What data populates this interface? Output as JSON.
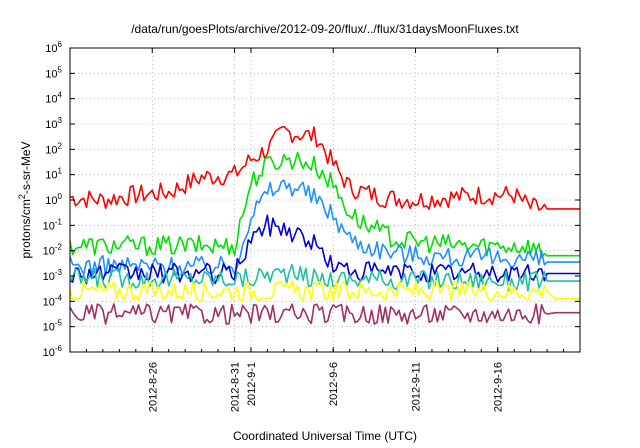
{
  "chart_data": {
    "type": "line",
    "title": "/data/run/goesPlots/archive/2012-09-20/flux/../flux/31daysMoonFluxes.txt",
    "xlabel": "Coordinated Universal Time (UTC)",
    "ylabel": {
      "prefix": "protons/cm",
      "sup": "2",
      "suffix": "-s-sr-MeV"
    },
    "x_range_days_from_2012_08_21": [
      0,
      31
    ],
    "y_scale": "log",
    "ylim": [
      1e-06,
      1000000.0
    ],
    "grid": true,
    "x_ticks": [
      {
        "label": "2012-8-26",
        "day": 5
      },
      {
        "label": "2012-8-31",
        "day": 10
      },
      {
        "label": "2012-9-1",
        "day": 11
      },
      {
        "label": "2012-9-6",
        "day": 16
      },
      {
        "label": "2012-9-11",
        "day": 21
      },
      {
        "label": "2012-9-16",
        "day": 26
      }
    ],
    "y_ticks": [
      {
        "base": "10",
        "exp": "-6",
        "value": -6
      },
      {
        "base": "10",
        "exp": "-5",
        "value": -5
      },
      {
        "base": "10",
        "exp": "-4",
        "value": -4
      },
      {
        "base": "10",
        "exp": "-3",
        "value": -3
      },
      {
        "base": "10",
        "exp": "-2",
        "value": -2
      },
      {
        "base": "10",
        "exp": "-1",
        "value": -1
      },
      {
        "base": "10",
        "exp": "0",
        "value": 0
      },
      {
        "base": "10",
        "exp": "1",
        "value": 1
      },
      {
        "base": "10",
        "exp": "2",
        "value": 2
      },
      {
        "base": "10",
        "exp": "3",
        "value": 3
      },
      {
        "base": "10",
        "exp": "4",
        "value": 4
      },
      {
        "base": "10",
        "exp": "5",
        "value": 5
      },
      {
        "base": "10",
        "exp": "6",
        "value": 6
      }
    ],
    "series": [
      {
        "color": "#ff0000",
        "points": [
          [
            0,
            0.1
          ],
          [
            2,
            0.0
          ],
          [
            4,
            0.2
          ],
          [
            6,
            0.3
          ],
          [
            8,
            0.9
          ],
          [
            10,
            1.0
          ],
          [
            11,
            1.6
          ],
          [
            12,
            2.0
          ],
          [
            13,
            2.7
          ],
          [
            14,
            2.6
          ],
          [
            15,
            2.5
          ],
          [
            16,
            1.4
          ],
          [
            17,
            0.5
          ],
          [
            19,
            0.1
          ],
          [
            21,
            0.0
          ],
          [
            23,
            0.1
          ],
          [
            25,
            0.2
          ],
          [
            27,
            0.2
          ],
          [
            28,
            -0.3
          ],
          [
            29,
            -0.35
          ]
        ]
      },
      {
        "color": "#00e000",
        "points": [
          [
            0,
            -1.8
          ],
          [
            10,
            -1.8
          ],
          [
            11,
            0.7
          ],
          [
            12,
            1.4
          ],
          [
            13,
            1.6
          ],
          [
            14,
            1.6
          ],
          [
            15,
            1.3
          ],
          [
            16,
            0.6
          ],
          [
            17,
            -0.5
          ],
          [
            18,
            -1.0
          ],
          [
            20,
            -1.6
          ],
          [
            22,
            -1.7
          ],
          [
            24,
            -1.8
          ],
          [
            28,
            -1.8
          ],
          [
            29,
            -2.2
          ]
        ]
      },
      {
        "color": "#1e90ff",
        "points": [
          [
            0,
            -2.6
          ],
          [
            10,
            -2.6
          ],
          [
            11,
            -0.6
          ],
          [
            12,
            0.3
          ],
          [
            13,
            0.6
          ],
          [
            14,
            0.5
          ],
          [
            15,
            0.0
          ],
          [
            16,
            -0.6
          ],
          [
            17,
            -1.5
          ],
          [
            18,
            -1.8
          ],
          [
            20,
            -2.1
          ],
          [
            22,
            -2.2
          ],
          [
            24,
            -2.3
          ],
          [
            28,
            -2.3
          ],
          [
            29,
            -2.45
          ]
        ]
      },
      {
        "color": "#0000dd",
        "points": [
          [
            0,
            -2.9
          ],
          [
            10,
            -2.9
          ],
          [
            11,
            -1.5
          ],
          [
            12,
            -1.0
          ],
          [
            13,
            -1.1
          ],
          [
            14,
            -1.4
          ],
          [
            15,
            -1.8
          ],
          [
            16,
            -2.6
          ],
          [
            17,
            -2.8
          ],
          [
            20,
            -2.85
          ],
          [
            29,
            -2.9
          ]
        ]
      },
      {
        "color": "#20c0a0",
        "points": [
          [
            0,
            -3.1
          ],
          [
            11,
            -3.1
          ],
          [
            12,
            -2.9
          ],
          [
            13,
            -2.9
          ],
          [
            14,
            -3.0
          ],
          [
            15,
            -3.1
          ],
          [
            29,
            -3.2
          ]
        ]
      },
      {
        "color": "#ffff00",
        "points": [
          [
            0,
            -3.6
          ],
          [
            29,
            -3.6
          ],
          [
            29.5,
            -3.9
          ]
        ]
      },
      {
        "color": "#a03060",
        "points": [
          [
            0,
            -4.5
          ],
          [
            29,
            -4.5
          ],
          [
            29.5,
            -4.45
          ]
        ]
      }
    ]
  }
}
